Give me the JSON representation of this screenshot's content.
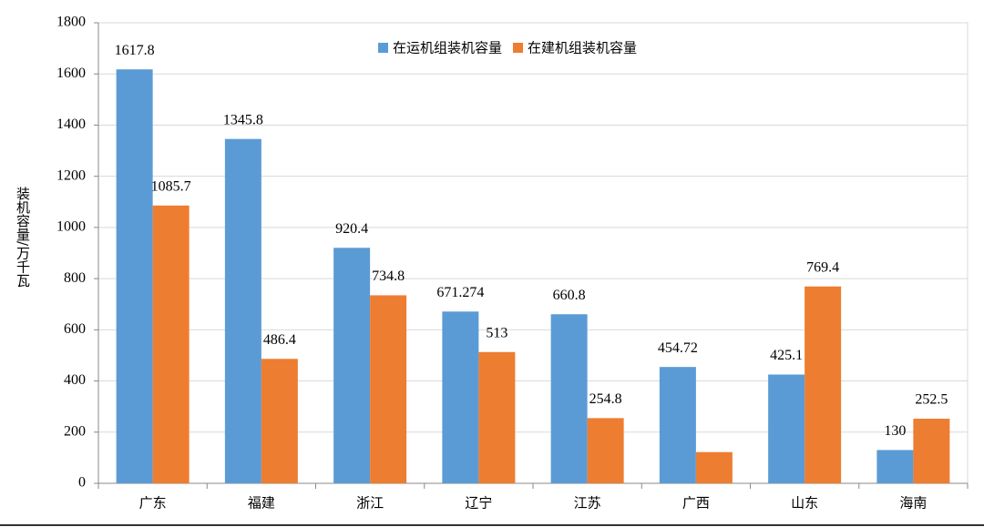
{
  "chart_data": {
    "type": "bar",
    "y_label": "装机容量/万千瓦",
    "categories": [
      "广东",
      "福建",
      "浙江",
      "辽宁",
      "江苏",
      "广西",
      "山东",
      "海南"
    ],
    "series": [
      {
        "name": "在运机组装机容量",
        "color": "#5b9bd5",
        "values": [
          1617.8,
          1345.8,
          920.4,
          671.274,
          660.8,
          454.72,
          425.1,
          130
        ]
      },
      {
        "name": "在建机组装机容量",
        "color": "#ed7d31",
        "values": [
          1085.7,
          486.4,
          734.8,
          513,
          254.8,
          122,
          769.4,
          252.5
        ],
        "value_labels": [
          "1085.7",
          "486.4",
          "734.8",
          "513",
          "254.8",
          null,
          "769.4",
          "252.5"
        ]
      }
    ],
    "ylim": [
      0,
      1800
    ],
    "yticks": [
      0,
      200,
      400,
      600,
      800,
      1000,
      1200,
      1400,
      1600,
      1800
    ],
    "grid": true
  }
}
